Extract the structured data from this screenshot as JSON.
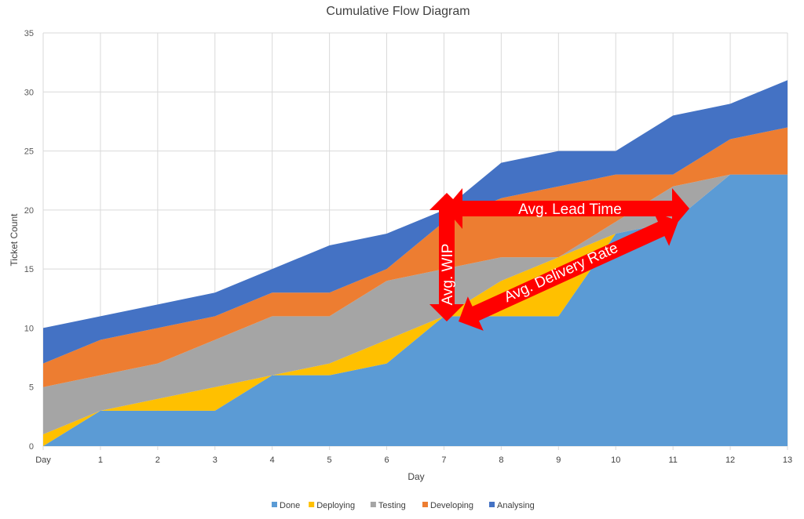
{
  "chart_data": {
    "type": "area",
    "stacked": true,
    "title": "Cumulative Flow Diagram",
    "xlabel": "Day",
    "ylabel": "Ticket Count",
    "categories": [
      "Day",
      "1",
      "2",
      "3",
      "4",
      "5",
      "6",
      "7",
      "8",
      "9",
      "10",
      "11",
      "12",
      "13"
    ],
    "ylim": [
      0,
      35
    ],
    "yticks": [
      0,
      5,
      10,
      15,
      20,
      25,
      30,
      35
    ],
    "grid": true,
    "legend": "bottom",
    "series": [
      {
        "name": "Done",
        "color": "#5B9BD5",
        "values": [
          0,
          3,
          3,
          3,
          6,
          6,
          7,
          11,
          11,
          11,
          18,
          19,
          23,
          23
        ]
      },
      {
        "name": "Deploying",
        "color": "#FFC000",
        "values": [
          1,
          0,
          1,
          2,
          0,
          1,
          2,
          0,
          3,
          5,
          0,
          0,
          0,
          0
        ]
      },
      {
        "name": "Testing",
        "color": "#A5A5A5",
        "values": [
          4,
          3,
          3,
          4,
          5,
          4,
          5,
          4,
          2,
          0,
          1,
          3,
          0,
          0
        ]
      },
      {
        "name": "Developing",
        "color": "#ED7D31",
        "values": [
          2,
          3,
          3,
          2,
          2,
          2,
          1,
          4,
          5,
          6,
          4,
          1,
          3,
          4
        ]
      },
      {
        "name": "Analysing",
        "color": "#4472C4",
        "values": [
          3,
          2,
          2,
          2,
          2,
          4,
          3,
          1,
          3,
          3,
          2,
          5,
          3,
          4
        ]
      }
    ],
    "annotations": [
      {
        "text": "Avg. Lead Time",
        "color": "#FF0000"
      },
      {
        "text": "Avg. WIP",
        "color": "#FF0000"
      },
      {
        "text": "Avg. Delivery Rate",
        "color": "#FF0000"
      }
    ]
  }
}
